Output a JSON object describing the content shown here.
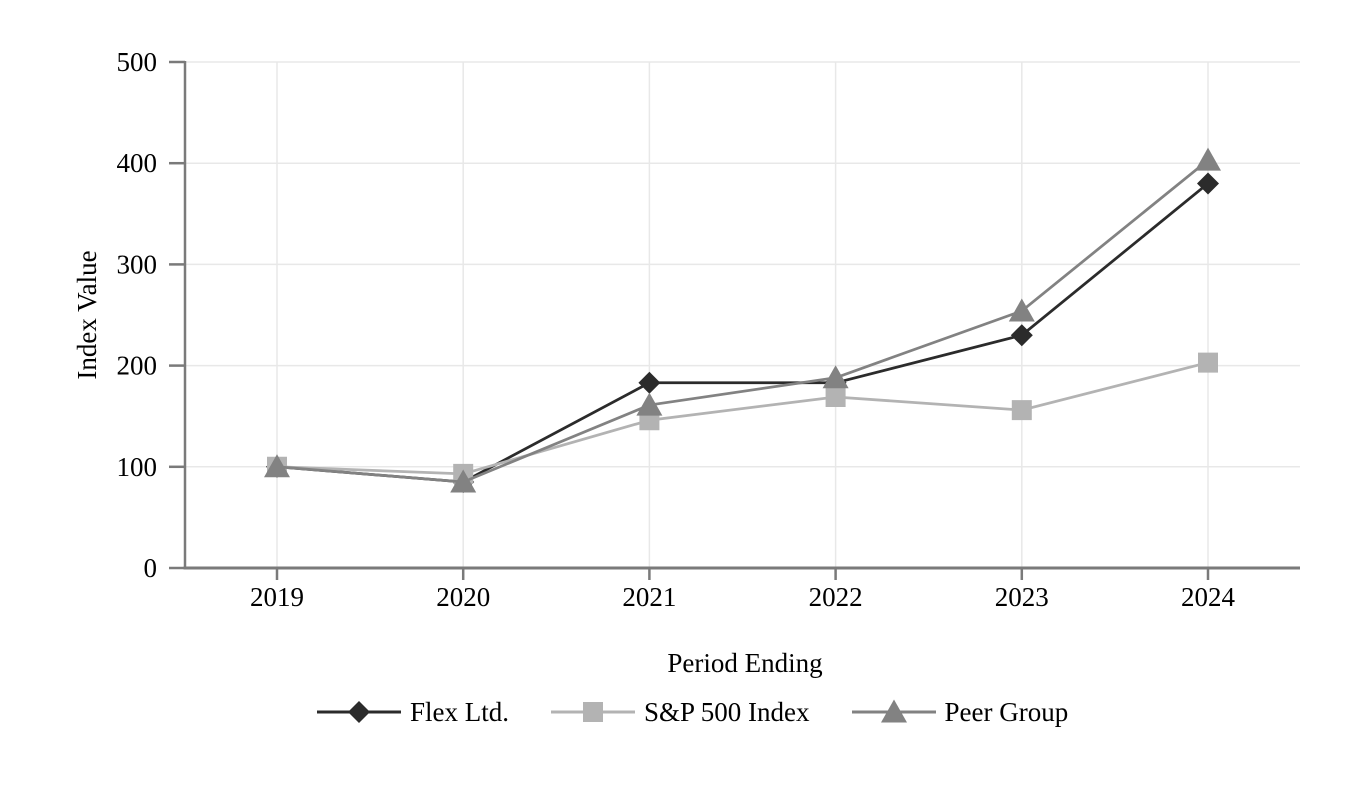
{
  "page": {
    "background": "#ffffff"
  },
  "chart_data": {
    "type": "line",
    "title": "",
    "xlabel": "Period Ending",
    "ylabel": "Index Value",
    "categories": [
      "2019",
      "2020",
      "2021",
      "2022",
      "2023",
      "2024"
    ],
    "ylim": [
      0,
      500
    ],
    "yticks": [
      0,
      100,
      200,
      300,
      400,
      500
    ],
    "grid": "on",
    "legend_position": "bottom-center",
    "series": [
      {
        "name": "Flex Ltd.",
        "marker": "diamond",
        "color": "#2b2b2b",
        "values": [
          100,
          85,
          183,
          183,
          230,
          380
        ]
      },
      {
        "name": "S&P 500 Index",
        "marker": "square",
        "color": "#b3b3b3",
        "values": [
          100,
          93,
          146,
          169,
          156,
          203
        ]
      },
      {
        "name": "Peer Group",
        "marker": "triangle",
        "color": "#828282",
        "values": [
          100,
          85,
          161,
          188,
          254,
          403
        ]
      }
    ],
    "colors": {
      "axis": "#7a7a7a",
      "grid": "#e8e8e8",
      "text": "#000000"
    }
  }
}
